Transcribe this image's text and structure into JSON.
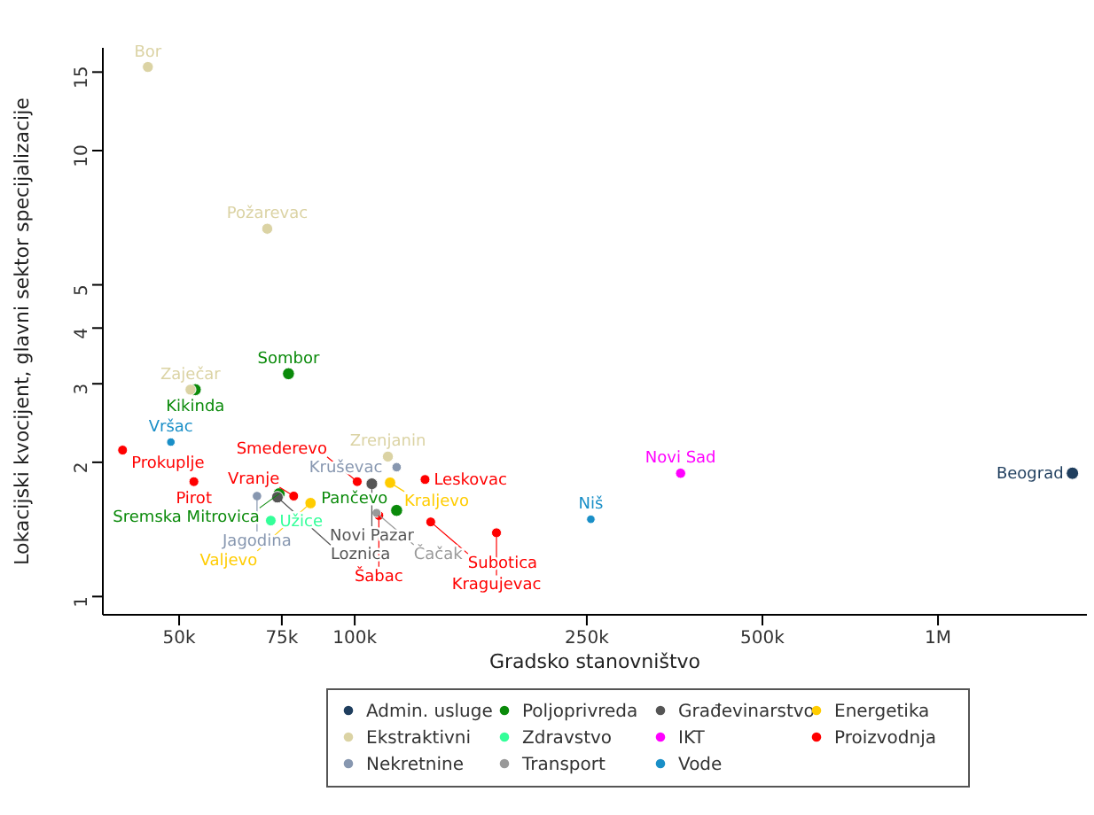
{
  "chart_data": {
    "type": "scatter",
    "xlabel": "Gradsko stanovništvo",
    "ylabel": "Lokacijski kvocijent, glavni sektor specijalizacije",
    "log": "xy",
    "grid": false,
    "legend": "bottom",
    "marker": "circle",
    "xlim": [
      37000,
      1800000
    ],
    "ylim": [
      0.91,
      17
    ],
    "xticks": [
      {
        "value": 50000,
        "label": "50k"
      },
      {
        "value": 75000,
        "label": "75k"
      },
      {
        "value": 100000,
        "label": "100k"
      },
      {
        "value": 250000,
        "label": "250k"
      },
      {
        "value": 500000,
        "label": "500k"
      },
      {
        "value": 1000000,
        "label": "1M"
      }
    ],
    "yticks": [
      1,
      2,
      3,
      4,
      5,
      10,
      15
    ],
    "series": [
      {
        "name": "Admin. usluge",
        "color": "#1f3e5e",
        "x": [
          1700000
        ],
        "values": [
          1.89
        ]
      },
      {
        "name": "Poljoprivreda",
        "color": "#0a8a0a",
        "x": [
          77000,
          53300,
          74200,
          118000
        ],
        "values": [
          3.16,
          2.91,
          1.7,
          1.56
        ]
      },
      {
        "name": "Građevinarstvo",
        "color": "#555555",
        "x": [
          107000,
          73700
        ],
        "values": [
          1.79,
          1.67
        ]
      },
      {
        "name": "Energetika",
        "color": "#ffcc00",
        "x": [
          115000,
          84000
        ],
        "values": [
          1.8,
          1.62
        ]
      },
      {
        "name": "Ekstraktivni",
        "color": "#dbd3a4",
        "x": [
          44200,
          70800,
          52300,
          114000
        ],
        "values": [
          15.4,
          6.68,
          2.91,
          2.06
        ]
      },
      {
        "name": "Zdravstvo",
        "color": "#33ff99",
        "x": [
          71800
        ],
        "values": [
          1.48
        ]
      },
      {
        "name": "IKT",
        "color": "#ff00ff",
        "x": [
          362000
        ],
        "values": [
          1.89
        ]
      },
      {
        "name": "Proizvodnja",
        "color": "#ff0000",
        "x": [
          40000,
          53000,
          101000,
          132000,
          78600,
          110000,
          135000,
          175000
        ],
        "values": [
          2.13,
          1.81,
          1.81,
          1.83,
          1.68,
          1.52,
          1.47,
          1.39
        ]
      },
      {
        "name": "Nekretnine",
        "color": "#8797b0",
        "x": [
          118000,
          68000
        ],
        "values": [
          1.95,
          1.68
        ]
      },
      {
        "name": "Transport",
        "color": "#999999",
        "x": [
          109000
        ],
        "values": [
          1.54
        ]
      },
      {
        "name": "Vode",
        "color": "#1a8fc7",
        "x": [
          48400,
          254000
        ],
        "values": [
          2.22,
          1.49
        ]
      }
    ],
    "annotations": [
      {
        "text": "Bor",
        "x": 44200,
        "y": 15.4
      },
      {
        "text": "Požarevac",
        "x": 70800,
        "y": 6.68
      },
      {
        "text": "Sombor",
        "x": 77000,
        "y": 3.16
      },
      {
        "text": "Zaječar",
        "x": 52300,
        "y": 2.91
      },
      {
        "text": "Kikinda",
        "x": 53300,
        "y": 2.91
      },
      {
        "text": "Vršac",
        "x": 48400,
        "y": 2.22
      },
      {
        "text": "Prokuplje",
        "x": 40000,
        "y": 2.13
      },
      {
        "text": "Zrenjanin",
        "x": 114000,
        "y": 2.06
      },
      {
        "text": "Kruševac",
        "x": 118000,
        "y": 1.95
      },
      {
        "text": "Novi Sad",
        "x": 362000,
        "y": 1.89
      },
      {
        "text": "Beograd",
        "x": 1700000,
        "y": 1.89
      },
      {
        "text": "Pirot",
        "x": 53000,
        "y": 1.81
      },
      {
        "text": "Smederevo",
        "x": 101000,
        "y": 1.81
      },
      {
        "text": "Leskovac",
        "x": 132000,
        "y": 1.83
      },
      {
        "text": "Kraljevo",
        "x": 115000,
        "y": 1.8
      },
      {
        "text": "Novi Pazar",
        "x": 107000,
        "y": 1.79
      },
      {
        "text": "Sremska Mitrovica",
        "x": 74200,
        "y": 1.7
      },
      {
        "text": "Vranje",
        "x": 78600,
        "y": 1.68
      },
      {
        "text": "Jagodina",
        "x": 68000,
        "y": 1.68
      },
      {
        "text": "Loznica",
        "x": 73700,
        "y": 1.67
      },
      {
        "text": "Valjevo",
        "x": 84000,
        "y": 1.62
      },
      {
        "text": "Pančevo",
        "x": 118000,
        "y": 1.56
      },
      {
        "text": "Čačak",
        "x": 109000,
        "y": 1.54
      },
      {
        "text": "Šabac",
        "x": 110000,
        "y": 1.52
      },
      {
        "text": "Niš",
        "x": 254000,
        "y": 1.49
      },
      {
        "text": "Užice",
        "x": 71800,
        "y": 1.48
      },
      {
        "text": "Subotica",
        "x": 135000,
        "y": 1.47
      },
      {
        "text": "Kragujevac",
        "x": 175000,
        "y": 1.39
      }
    ]
  }
}
